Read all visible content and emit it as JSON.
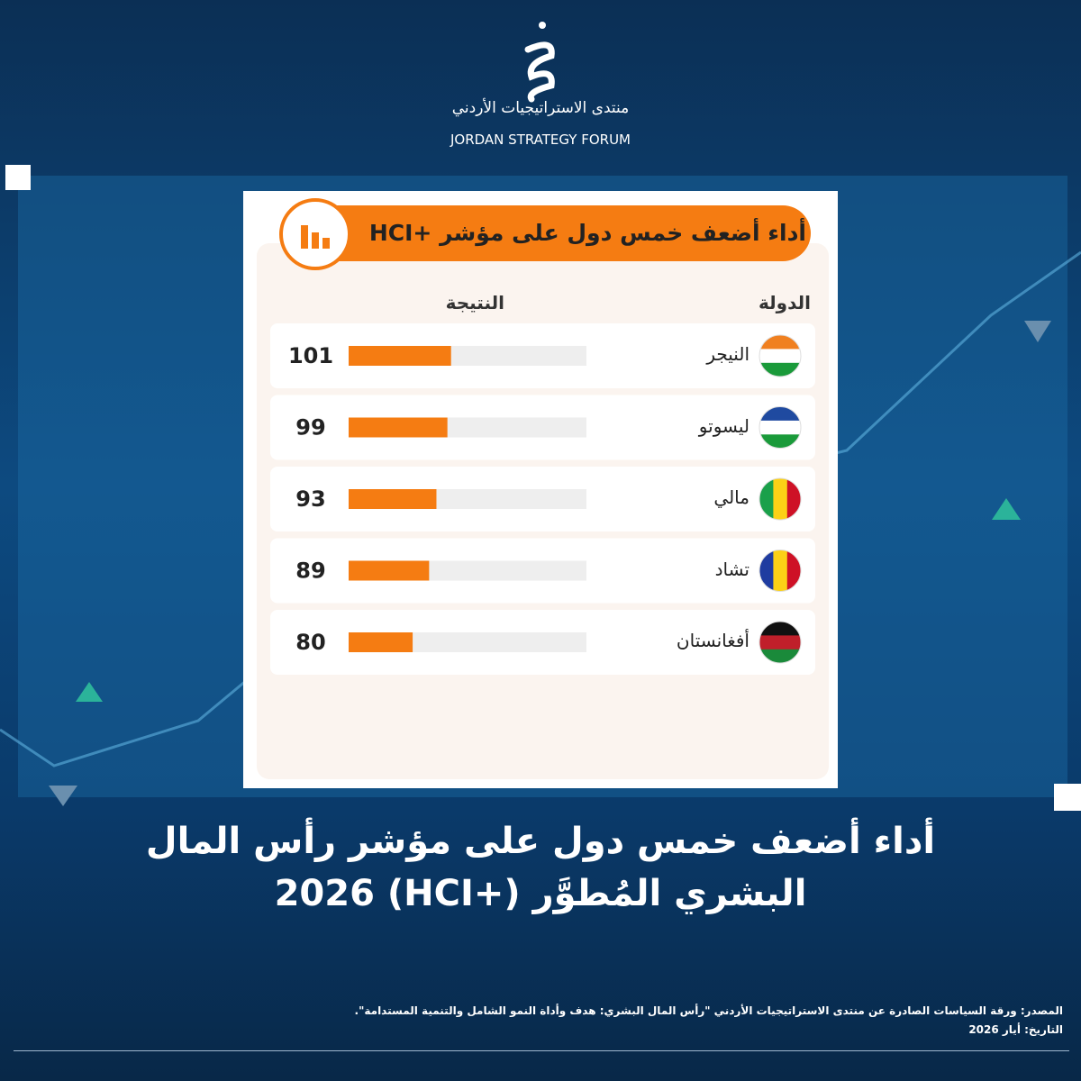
{
  "logo": {
    "arabic": "منتدى الاستراتيجيات الأردني",
    "english": "JORDAN STRATEGY FORUM"
  },
  "headline": "أداء أضعف خمس دول على مؤشر رأس المال البشري المُطوَّر (+HCI) 2026",
  "chart_data": {
    "type": "bar",
    "title": "أداء أضعف خمس دول على مؤشر +HCI",
    "category_header": "الدولة",
    "value_header": "النتيجة",
    "categories": [
      "النيجر",
      "ليسوتو",
      "مالي",
      "تشاد",
      "أفغانستان"
    ],
    "values": [
      101,
      99,
      93,
      89,
      80
    ],
    "color": "#f57c12",
    "xlim": [
      45,
      175
    ]
  },
  "source": "المصدر: ورقة السياسات الصادرة عن منتدى الاستراتيجيات الأردني \"رأس المال البشري: هدف وأداة النمو الشامل والتنمية المستدامة\".",
  "date": "التاريخ: أيار 2026"
}
